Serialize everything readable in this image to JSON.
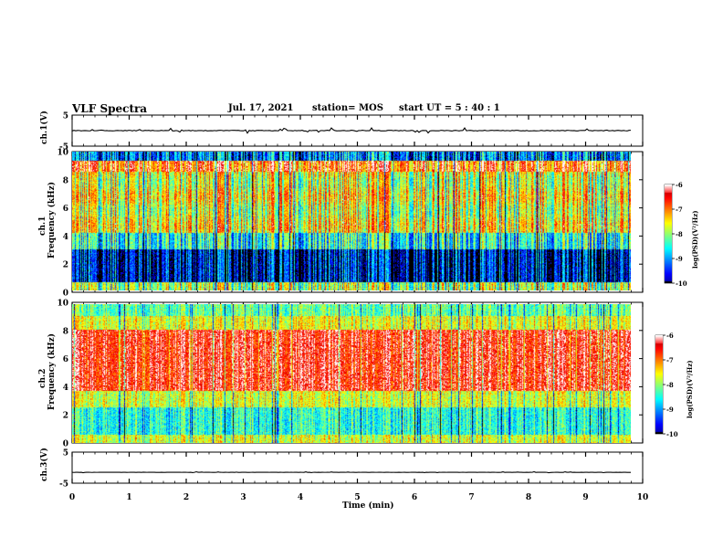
{
  "header": {
    "title": "VLF Spectra",
    "date": "Jul. 17, 2021",
    "station": "station= MOS",
    "start": "start UT =  5 : 40 : 1"
  },
  "chart_data": [
    {
      "type": "line",
      "panel": "ch1-waveform",
      "ylabel": "ch.1(V)",
      "yticks": [
        "5",
        "-5"
      ],
      "ylim": [
        -5,
        5
      ],
      "level": 0
    },
    {
      "type": "heatmap",
      "panel": "ch1-spectrogram",
      "ylabel_top": "ch.1",
      "ylabel": "Frequency (kHz)",
      "yticks": [
        "0",
        "2",
        "4",
        "6",
        "8",
        "10"
      ],
      "ylim": [
        0,
        10
      ],
      "colorbar": {
        "label": "log(PSD)(V²/Hz)",
        "ticks": [
          "-6",
          "-7",
          "-8",
          "-9",
          "-10"
        ],
        "range": [
          -10,
          -6
        ]
      }
    },
    {
      "type": "heatmap",
      "panel": "ch2-spectrogram",
      "ylabel_top": "ch.2",
      "ylabel": "Frequency (kHz)",
      "yticks": [
        "0",
        "2",
        "4",
        "6",
        "8",
        "10"
      ],
      "ylim": [
        0,
        10
      ],
      "colorbar": {
        "label": "log(PSD)(V²/Hz)",
        "ticks": [
          "-6",
          "-7",
          "-8",
          "-9",
          "-10"
        ],
        "range": [
          -10,
          -6
        ]
      }
    },
    {
      "type": "line",
      "panel": "ch3-waveform",
      "ylabel": "ch.3(V)",
      "yticks": [
        "5",
        "-5"
      ],
      "ylim": [
        -5,
        5
      ],
      "level": -1.5
    }
  ],
  "xaxis": {
    "label": "Time (min)",
    "ticks": [
      "0",
      "1",
      "2",
      "3",
      "4",
      "5",
      "6",
      "7",
      "8",
      "9",
      "10"
    ],
    "xlim": [
      0,
      10
    ],
    "data_end": 9.82
  }
}
